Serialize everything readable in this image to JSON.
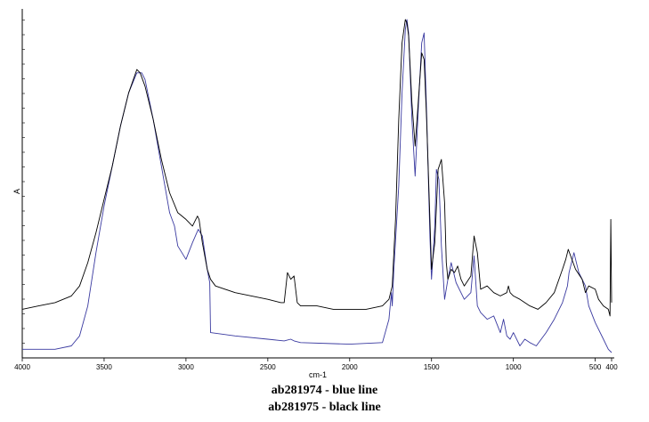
{
  "chart_data": {
    "type": "line",
    "xlabel": "cm-1",
    "ylabel": "A",
    "x_reversed": true,
    "xlim": [
      4000,
      400
    ],
    "ylim": [
      0,
      1
    ],
    "grid": false,
    "x_ticks": [
      "4000",
      "3500",
      "3000",
      "2500",
      "2000",
      "1500",
      "1000",
      "500",
      "400"
    ],
    "x_tick_values": [
      4000,
      3500,
      3000,
      2500,
      2000,
      1500,
      1000,
      500,
      400
    ],
    "captions": [
      "ab281974 - blue line",
      "ab281975 - black line"
    ],
    "series": [
      {
        "color": "#3a3aa0",
        "x": [
          4000,
          3800,
          3700,
          3650,
          3600,
          3550,
          3500,
          3450,
          3400,
          3350,
          3300,
          3270,
          3250,
          3200,
          3150,
          3100,
          3070,
          3050,
          3000,
          2960,
          2925,
          2900,
          2870,
          2855,
          2850,
          2700,
          2500,
          2400,
          2360,
          2340,
          2300,
          2000,
          1800,
          1760,
          1745,
          1740,
          1730,
          1700,
          1680,
          1660,
          1650,
          1640,
          1620,
          1600,
          1580,
          1560,
          1545,
          1530,
          1510,
          1500,
          1480,
          1470,
          1455,
          1440,
          1420,
          1400,
          1380,
          1350,
          1320,
          1300,
          1260,
          1240,
          1220,
          1200,
          1160,
          1120,
          1080,
          1060,
          1040,
          1020,
          1000,
          960,
          930,
          900,
          860,
          800,
          750,
          700,
          670,
          660,
          630,
          600,
          560,
          540,
          500,
          450,
          420,
          400
        ],
        "values": [
          0.01,
          0.01,
          0.02,
          0.05,
          0.14,
          0.3,
          0.44,
          0.56,
          0.68,
          0.78,
          0.84,
          0.84,
          0.82,
          0.7,
          0.56,
          0.42,
          0.38,
          0.32,
          0.28,
          0.33,
          0.37,
          0.35,
          0.25,
          0.21,
          0.06,
          0.05,
          0.04,
          0.035,
          0.04,
          0.035,
          0.03,
          0.025,
          0.03,
          0.1,
          0.18,
          0.14,
          0.25,
          0.5,
          0.78,
          0.97,
          1.0,
          0.96,
          0.7,
          0.53,
          0.74,
          0.93,
          0.96,
          0.72,
          0.35,
          0.22,
          0.38,
          0.55,
          0.52,
          0.32,
          0.16,
          0.22,
          0.27,
          0.21,
          0.18,
          0.16,
          0.18,
          0.29,
          0.14,
          0.12,
          0.1,
          0.11,
          0.06,
          0.1,
          0.05,
          0.04,
          0.06,
          0.02,
          0.04,
          0.03,
          0.02,
          0.06,
          0.1,
          0.15,
          0.2,
          0.24,
          0.3,
          0.24,
          0.2,
          0.14,
          0.09,
          0.04,
          0.01,
          0.0
        ]
      },
      {
        "color": "#000000",
        "x": [
          4000,
          3900,
          3800,
          3750,
          3700,
          3650,
          3600,
          3550,
          3500,
          3450,
          3400,
          3350,
          3300,
          3280,
          3250,
          3200,
          3150,
          3100,
          3050,
          3000,
          2960,
          2930,
          2920,
          2900,
          2870,
          2850,
          2820,
          2700,
          2600,
          2500,
          2420,
          2400,
          2380,
          2360,
          2340,
          2320,
          2300,
          2250,
          2200,
          2100,
          2000,
          1900,
          1800,
          1760,
          1740,
          1720,
          1700,
          1680,
          1660,
          1650,
          1640,
          1620,
          1600,
          1580,
          1560,
          1545,
          1530,
          1510,
          1500,
          1480,
          1460,
          1440,
          1420,
          1410,
          1400,
          1380,
          1360,
          1340,
          1320,
          1300,
          1260,
          1240,
          1220,
          1200,
          1160,
          1120,
          1080,
          1040,
          1030,
          1020,
          1000,
          960,
          900,
          850,
          800,
          750,
          700,
          680,
          665,
          650,
          620,
          580,
          560,
          540,
          500,
          480,
          450,
          420,
          410,
          405,
          400
        ],
        "values": [
          0.13,
          0.14,
          0.15,
          0.16,
          0.17,
          0.2,
          0.27,
          0.36,
          0.46,
          0.56,
          0.68,
          0.78,
          0.85,
          0.84,
          0.8,
          0.7,
          0.58,
          0.48,
          0.42,
          0.4,
          0.38,
          0.41,
          0.4,
          0.33,
          0.25,
          0.22,
          0.2,
          0.18,
          0.17,
          0.16,
          0.15,
          0.15,
          0.24,
          0.22,
          0.23,
          0.15,
          0.14,
          0.14,
          0.14,
          0.13,
          0.13,
          0.13,
          0.14,
          0.16,
          0.2,
          0.4,
          0.7,
          0.93,
          1.0,
          0.99,
          0.95,
          0.75,
          0.62,
          0.76,
          0.9,
          0.88,
          0.7,
          0.4,
          0.25,
          0.33,
          0.55,
          0.58,
          0.45,
          0.27,
          0.22,
          0.25,
          0.24,
          0.26,
          0.22,
          0.2,
          0.23,
          0.35,
          0.3,
          0.19,
          0.2,
          0.18,
          0.17,
          0.18,
          0.2,
          0.18,
          0.17,
          0.16,
          0.14,
          0.13,
          0.15,
          0.18,
          0.25,
          0.28,
          0.31,
          0.29,
          0.25,
          0.22,
          0.18,
          0.2,
          0.19,
          0.16,
          0.14,
          0.13,
          0.11,
          0.4,
          0.15
        ]
      }
    ]
  }
}
